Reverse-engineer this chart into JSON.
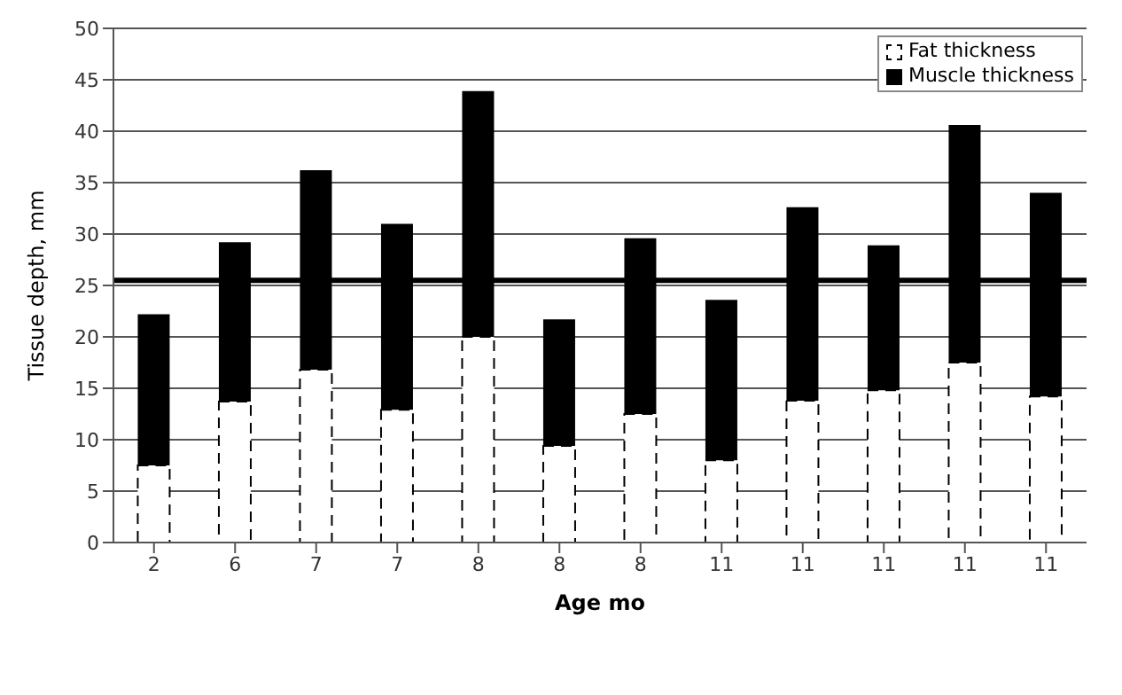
{
  "chart_data": {
    "type": "bar",
    "stacked": true,
    "xlabel": "Age mo",
    "ylabel": "Tissue depth, mm",
    "categories": [
      "2",
      "6",
      "7",
      "7",
      "8",
      "8",
      "8",
      "11",
      "11",
      "11",
      "11",
      "11"
    ],
    "series": [
      {
        "name": "Fat thickness",
        "color": "#ffffff",
        "line_style": "dashed",
        "values": [
          7.5,
          13.7,
          16.8,
          12.9,
          20.0,
          9.4,
          12.5,
          8.0,
          13.8,
          14.8,
          17.5,
          14.2
        ]
      },
      {
        "name": "Muscle thickness",
        "color": "#000000",
        "values": [
          14.7,
          15.5,
          19.4,
          18.1,
          23.9,
          12.3,
          17.1,
          15.6,
          18.8,
          14.1,
          23.1,
          19.8
        ]
      }
    ],
    "ylim": [
      0,
      50
    ],
    "yticks": [
      0,
      5,
      10,
      15,
      20,
      25,
      30,
      35,
      40,
      45,
      50
    ],
    "grid": "y",
    "legend": "top right",
    "ref_lines": [
      {
        "axis": "y",
        "value": 25.5,
        "color": "#000000"
      }
    ]
  }
}
